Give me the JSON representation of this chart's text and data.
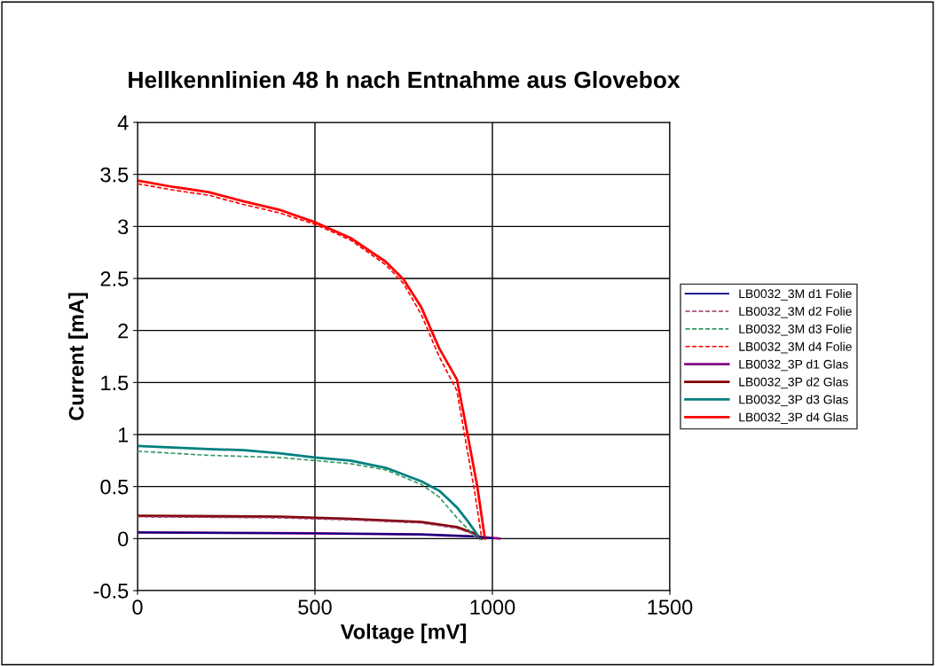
{
  "chart_data": {
    "type": "line",
    "title": "Hellkennlinien 48 h nach Entnahme aus Glovebox",
    "xlabel": "Voltage [mV]",
    "ylabel": "Current [mA]",
    "xlim": [
      0,
      1500
    ],
    "xticks": [
      0,
      500,
      1000,
      1500
    ],
    "ylim": [
      -0.5,
      4
    ],
    "yticks": [
      -0.5,
      0,
      0.5,
      1,
      1.5,
      2,
      2.5,
      3,
      3.5,
      4
    ],
    "grid": true,
    "legend": "right",
    "marker": "none",
    "series": [
      {
        "name": "LB0032_3M d1 Folie",
        "color": "#000080",
        "line_style": "solid",
        "x": [
          0,
          500,
          800,
          950,
          1000
        ],
        "values": [
          0.06,
          0.05,
          0.04,
          0.02,
          0
        ]
      },
      {
        "name": "LB0032_3M d2 Folie",
        "color": "#993366",
        "line_style": "dashed",
        "x": [
          0,
          400,
          600,
          800,
          900,
          950,
          965
        ],
        "values": [
          0.21,
          0.2,
          0.18,
          0.15,
          0.1,
          0.04,
          0
        ]
      },
      {
        "name": "LB0032_3M d3 Folie",
        "color": "#339966",
        "line_style": "dashed",
        "x": [
          0,
          200,
          400,
          500,
          600,
          700,
          800,
          850,
          900,
          940,
          955
        ],
        "values": [
          0.84,
          0.8,
          0.78,
          0.75,
          0.72,
          0.66,
          0.52,
          0.4,
          0.2,
          0.06,
          0
        ]
      },
      {
        "name": "LB0032_3M d4 Folie",
        "color": "#ff0000",
        "line_style": "dashed",
        "x": [
          0,
          100,
          200,
          300,
          400,
          500,
          600,
          700,
          750,
          800,
          850,
          900,
          924,
          950,
          970
        ],
        "values": [
          3.41,
          3.35,
          3.3,
          3.21,
          3.13,
          3.02,
          2.87,
          2.63,
          2.45,
          2.15,
          1.75,
          1.42,
          0.95,
          0.45,
          0
        ]
      },
      {
        "name": "LB0032_3P d1 Glas",
        "color": "#800080",
        "line_style": "solid",
        "x": [
          0,
          500,
          800,
          950,
          1020
        ],
        "values": [
          0.06,
          0.05,
          0.04,
          0.02,
          0
        ]
      },
      {
        "name": "LB0032_3P d2 Glas",
        "color": "#800000",
        "line_style": "solid",
        "x": [
          0,
          400,
          600,
          800,
          900,
          950,
          970
        ],
        "values": [
          0.22,
          0.21,
          0.19,
          0.16,
          0.11,
          0.05,
          0
        ]
      },
      {
        "name": "LB0032_3P d3 Glas",
        "color": "#008080",
        "line_style": "solid",
        "x": [
          0,
          200,
          300,
          400,
          500,
          600,
          700,
          800,
          850,
          900,
          930,
          955,
          965
        ],
        "values": [
          0.89,
          0.86,
          0.85,
          0.82,
          0.78,
          0.75,
          0.68,
          0.55,
          0.46,
          0.3,
          0.17,
          0.05,
          0
        ]
      },
      {
        "name": "LB0032_3P d4 Glas",
        "color": "#ff0000",
        "line_style": "solid",
        "x": [
          0,
          100,
          200,
          300,
          400,
          500,
          600,
          700,
          750,
          800,
          850,
          900,
          924,
          957,
          979
        ],
        "values": [
          3.44,
          3.38,
          3.33,
          3.24,
          3.16,
          3.04,
          2.89,
          2.66,
          2.49,
          2.22,
          1.83,
          1.53,
          1.11,
          0.51,
          0
        ]
      }
    ]
  }
}
